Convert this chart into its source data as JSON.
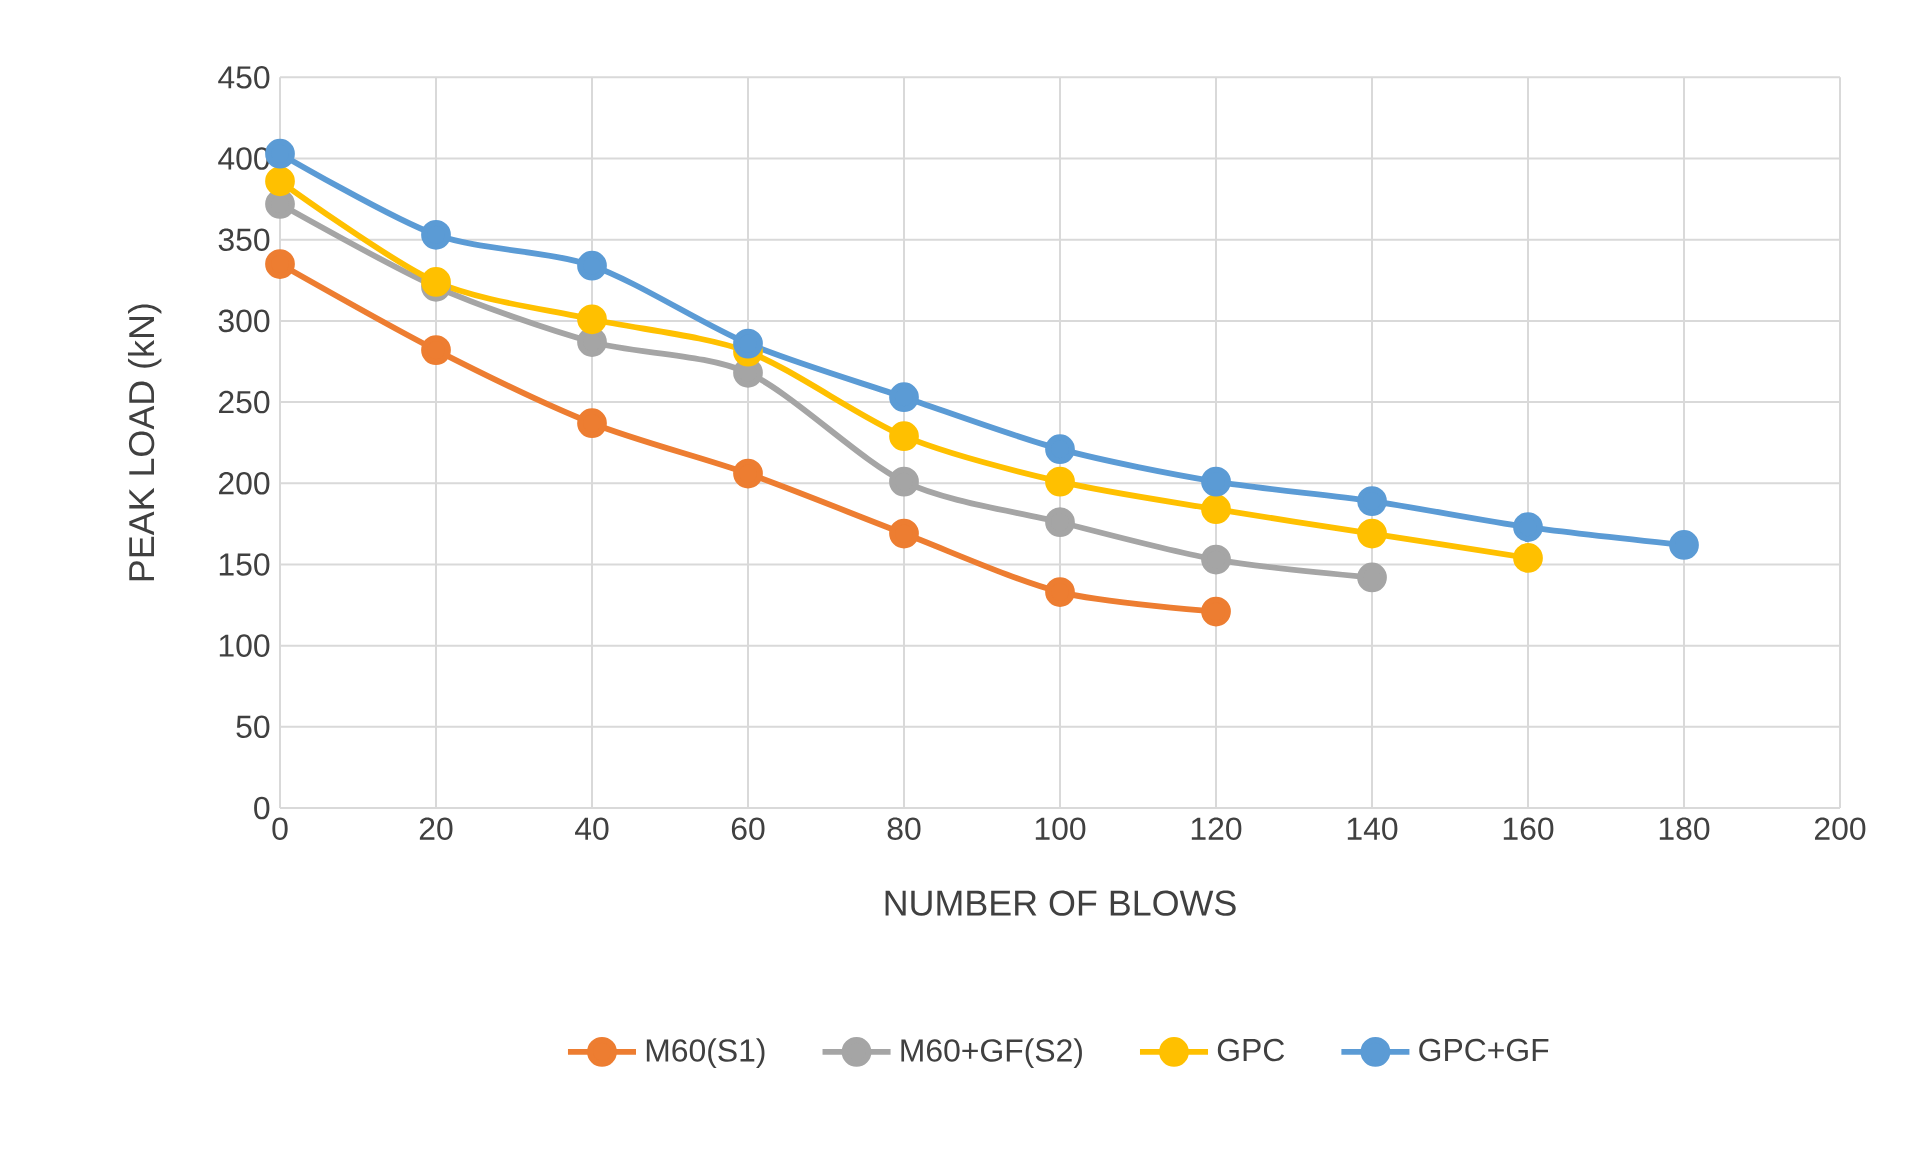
{
  "chart_data": {
    "type": "line",
    "xlabel": "NUMBER OF BLOWS",
    "ylabel": "PEAK LOAD (kN)",
    "xlim": [
      0,
      200
    ],
    "xticks": [
      0,
      20,
      40,
      60,
      80,
      100,
      120,
      140,
      160,
      180,
      200
    ],
    "ylim": [
      0,
      450
    ],
    "yticks": [
      0,
      50,
      100,
      150,
      200,
      250,
      300,
      350,
      400,
      450
    ],
    "grid": true,
    "legend": "bottom",
    "marker": "circle",
    "line_style": "solid",
    "series": [
      {
        "name": "M60(S1)",
        "color": "#ed7d31",
        "x": [
          0,
          20,
          40,
          60,
          80,
          100,
          120
        ],
        "values": [
          335,
          282,
          237,
          206,
          169,
          133,
          121
        ]
      },
      {
        "name": "M60+GF(S2)",
        "color": "#a5a5a5",
        "x": [
          0,
          20,
          40,
          60,
          80,
          100,
          120,
          140
        ],
        "values": [
          372,
          321,
          287,
          268,
          201,
          176,
          153,
          142
        ]
      },
      {
        "name": "GPC",
        "color": "#ffc000",
        "x": [
          0,
          20,
          40,
          60,
          80,
          100,
          120,
          140,
          160
        ],
        "values": [
          386,
          324,
          301,
          281,
          229,
          201,
          184,
          169,
          154
        ]
      },
      {
        "name": "GPC+GF",
        "color": "#5b9bd5",
        "x": [
          0,
          20,
          40,
          60,
          80,
          100,
          120,
          140,
          160,
          180
        ],
        "values": [
          403,
          353,
          334,
          286,
          253,
          221,
          201,
          189,
          173,
          162
        ]
      }
    ]
  }
}
